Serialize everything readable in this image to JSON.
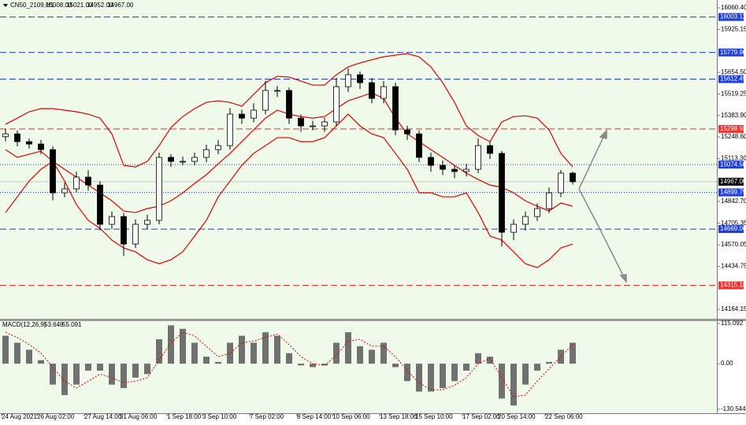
{
  "header": {
    "symbol": "CN50_2109,H1",
    "open": "15008.00",
    "high": "15021.00",
    "low": "14952.00",
    "close": "14967.00"
  },
  "chart_data": [
    {
      "type": "candlestick",
      "categories": [
        "24 Aug 2021",
        null,
        null,
        "26 Aug 02:00",
        null,
        null,
        null,
        "27 Aug 14:00",
        null,
        null,
        "31 Aug 06:00",
        null,
        null,
        null,
        "1 Sep 18:00",
        null,
        null,
        "3 Sep 10:00",
        null,
        null,
        null,
        "7 Sep 02:00",
        null,
        null,
        null,
        "8 Sep 14:00",
        null,
        null,
        "10 Sep 06:00",
        null,
        null,
        null,
        "13 Sep 18:00",
        null,
        null,
        "15 Sep 10:00",
        null,
        null,
        null,
        "17 Sep 02:00",
        null,
        null,
        "20 Sep 14:00",
        null,
        null,
        null,
        "22 Sep 06:00",
        null,
        null
      ],
      "open": [
        15250,
        15268,
        15219,
        15204,
        15169,
        14897,
        14922,
        14996,
        14946,
        14699,
        14748,
        14575,
        14699,
        14724,
        15120,
        15095,
        15095,
        15120,
        15169,
        15194,
        15392,
        15367,
        15417,
        15541,
        15541,
        15367,
        15318,
        15318,
        15343,
        15565,
        15640,
        15590,
        15491,
        15565,
        15293,
        15268,
        15120,
        15070,
        15045,
        15031,
        15045,
        15194,
        15145,
        14649,
        14699,
        14748,
        14798,
        14897,
        15021
      ],
      "high": [
        15300,
        15290,
        15240,
        15230,
        15190,
        14960,
        15030,
        15040,
        14970,
        14780,
        14770,
        14730,
        14760,
        15150,
        15140,
        15125,
        15150,
        15200,
        15230,
        15430,
        15420,
        15460,
        15600,
        15570,
        15560,
        15390,
        15350,
        15370,
        15620,
        15680,
        15660,
        15620,
        15600,
        15590,
        15320,
        15290,
        15150,
        15100,
        15070,
        15080,
        15240,
        15220,
        15160,
        14730,
        14780,
        14830,
        14930,
        15040,
        15030
      ],
      "low": [
        15220,
        15190,
        15175,
        15140,
        14850,
        14870,
        14900,
        14910,
        14660,
        14670,
        14500,
        14550,
        14670,
        14700,
        15060,
        15070,
        15070,
        15090,
        15140,
        15170,
        15330,
        15340,
        15390,
        15500,
        15330,
        15280,
        15290,
        15280,
        15320,
        15530,
        15550,
        15460,
        15460,
        15260,
        15230,
        15090,
        15030,
        15010,
        14990,
        15000,
        15020,
        15110,
        14560,
        14600,
        14660,
        14720,
        14770,
        14870,
        14950
      ],
      "close": [
        15268,
        15219,
        15204,
        15169,
        14897,
        14922,
        14996,
        14946,
        14699,
        14748,
        14575,
        14699,
        14724,
        15120,
        15095,
        15095,
        15120,
        15169,
        15194,
        15392,
        15367,
        15417,
        15541,
        15541,
        15367,
        15318,
        15318,
        15343,
        15565,
        15640,
        15590,
        15491,
        15565,
        15293,
        15268,
        15120,
        15070,
        15045,
        15031,
        15045,
        15194,
        15145,
        14649,
        14699,
        14748,
        14798,
        14897,
        15021,
        14967
      ],
      "series": [
        {
          "color": "#e00000",
          "values": [
            15328,
            15367,
            15407,
            15427,
            15427,
            15417,
            15407,
            15392,
            15367,
            15268,
            15070,
            15060,
            15095,
            15194,
            15308,
            15377,
            15427,
            15466,
            15476,
            15466,
            15442,
            15516,
            15590,
            15630,
            15625,
            15600,
            15575,
            15575,
            15640,
            15689,
            15714,
            15734,
            15753,
            15763,
            15773,
            15753,
            15689,
            15590,
            15466,
            15318,
            15258,
            15219,
            15343,
            15377,
            15382,
            15367,
            15293,
            15145,
            15060
          ]
        },
        {
          "color": "#e00000",
          "values": [
            15169,
            15120,
            15140,
            15159,
            15095,
            15045,
            14996,
            14946,
            14897,
            14847,
            14783,
            14773,
            14798,
            14813,
            14847,
            14897,
            14956,
            15011,
            15080,
            15145,
            15219,
            15293,
            15367,
            15417,
            15392,
            15377,
            15367,
            15377,
            15427,
            15476,
            15501,
            15526,
            15491,
            15367,
            15268,
            15219,
            15169,
            15120,
            15070,
            15021,
            14981,
            14946,
            14932,
            14897,
            14847,
            14813,
            14783,
            14833,
            14813
          ]
        },
        {
          "color": "#e00000",
          "values": [
            14773,
            14872,
            14971,
            15045,
            15095,
            14971,
            14823,
            14724,
            14674,
            14600,
            14550,
            14526,
            14476,
            14451,
            14476,
            14526,
            14625,
            14724,
            14872,
            14971,
            15070,
            15145,
            15194,
            15244,
            15244,
            15219,
            15219,
            15244,
            15318,
            15392,
            15318,
            15268,
            15244,
            15145,
            15045,
            14897,
            14897,
            14872,
            14872,
            14897,
            14773,
            14625,
            14600,
            14526,
            14451,
            14427,
            14476,
            14550,
            14575
          ]
        }
      ],
      "ylim": [
        14105,
        16110
      ],
      "yticks": [
        {
          "value": 16060.4,
          "label": "16060.40"
        },
        {
          "value": 15925.15,
          "label": "15925.15"
        },
        {
          "value": 15654.5,
          "label": "15654.50"
        },
        {
          "value": 15519.25,
          "label": "15519.25"
        },
        {
          "value": 15383.9,
          "label": "15383.90"
        },
        {
          "value": 15248.6,
          "label": "15248.60"
        },
        {
          "value": 15113.3,
          "label": "15113.30"
        },
        {
          "value": 14842.7,
          "label": "14842.70"
        },
        {
          "value": 14705.35,
          "label": "14705.35"
        },
        {
          "value": 14570.05,
          "label": "14570.05"
        },
        {
          "value": 14434.75,
          "label": "14434.75"
        },
        {
          "value": 14164.15,
          "label": "14164.15"
        }
      ],
      "levels": [
        {
          "value": 16003.11,
          "label": "16003.11",
          "color": "#1f3fd8",
          "style": "dashed"
        },
        {
          "value": 15779.9,
          "label": "15779.90",
          "color": "#1f3fd8",
          "style": "dashed"
        },
        {
          "value": 15612.49,
          "label": "15612.49",
          "color": "#1f3fd8",
          "style": "dashed"
        },
        {
          "value": 15298.93,
          "label": "15298.93",
          "color": "#ee3030",
          "style": "dashed"
        },
        {
          "value": 15074.5,
          "label": "15074.50",
          "color": "#1f3fd8",
          "style": "dotted"
        },
        {
          "value": 14967,
          "label": "14967.00",
          "color": "#000000",
          "style": "solid"
        },
        {
          "value": 14899.79,
          "label": "14899.79",
          "color": "#1f3fd8",
          "style": "dotted"
        },
        {
          "value": 14669.06,
          "label": "14669.06",
          "color": "#1f3fd8",
          "style": "dashed"
        },
        {
          "value": 14315.18,
          "label": "14315.18",
          "color": "#ee3030",
          "style": "dashed"
        }
      ]
    },
    {
      "type": "macd",
      "title": "MACD(12,26,9)",
      "macd_value": 53.648,
      "signal_value": 55.091,
      "series": [
        {
          "name": "MACD",
          "color": "#707070",
          "values": [
            80,
            60,
            40,
            10,
            -60,
            -90,
            -60,
            -20,
            -20,
            -60,
            -70,
            -40,
            -30,
            70,
            110,
            100,
            60,
            20,
            5,
            60,
            80,
            60,
            90,
            80,
            30,
            -5,
            -10,
            -5,
            60,
            90,
            50,
            40,
            60,
            -10,
            -50,
            -80,
            -80,
            -70,
            -50,
            -20,
            30,
            20,
            -100,
            -120,
            -60,
            -20,
            5,
            40,
            60
          ]
        },
        {
          "name": "Signal",
          "color": "#e00000",
          "values": [
            90,
            75,
            55,
            30,
            -10,
            -50,
            -70,
            -50,
            -30,
            -40,
            -55,
            -50,
            -40,
            10,
            60,
            90,
            80,
            50,
            20,
            30,
            60,
            65,
            75,
            85,
            55,
            20,
            0,
            -5,
            25,
            65,
            70,
            50,
            50,
            20,
            -20,
            -55,
            -75,
            -75,
            -62,
            -40,
            0,
            15,
            -40,
            -95,
            -90,
            -50,
            -15,
            20,
            55
          ]
        }
      ],
      "ylim": [
        -142,
        122
      ],
      "yticks": [
        115.092,
        {
          "value": 0,
          "label": "0.00"
        },
        -130.544
      ]
    }
  ]
}
